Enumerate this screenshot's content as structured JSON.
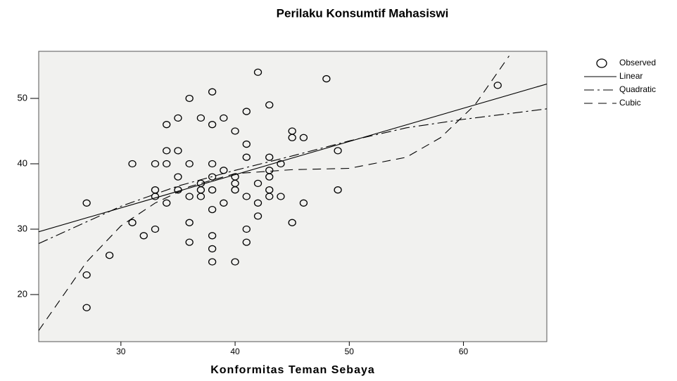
{
  "chart_data": {
    "type": "scatter",
    "title": "Perilaku Konsumtif Mahasiswi",
    "x_label": "Konformitas Teman Sebaya",
    "xlim": [
      22.8,
      67.3
    ],
    "ylim": [
      12.8,
      57.2
    ],
    "xticks": [
      30,
      40,
      50,
      60
    ],
    "yticks": [
      20,
      30,
      40,
      50
    ],
    "series": [
      {
        "name": "Observed",
        "mode": "markers",
        "color": "#000000",
        "x": [
          27,
          27,
          27,
          29,
          31,
          31,
          32,
          33,
          33,
          33,
          33,
          34,
          34,
          34,
          34,
          35,
          35,
          35,
          35,
          36,
          36,
          36,
          36,
          36,
          37,
          37,
          37,
          37,
          38,
          38,
          38,
          38,
          38,
          38,
          38,
          38,
          38,
          39,
          39,
          39,
          40,
          40,
          40,
          40,
          40,
          41,
          41,
          41,
          41,
          41,
          41,
          42,
          42,
          42,
          42,
          43,
          43,
          43,
          43,
          43,
          43,
          44,
          44,
          45,
          45,
          45,
          46,
          46,
          48,
          49,
          49,
          63
        ],
        "values": [
          34,
          23,
          18,
          26,
          40,
          31,
          29,
          40,
          36,
          35,
          30,
          46,
          42,
          40,
          34,
          47,
          42,
          38,
          36,
          50,
          40,
          35,
          31,
          28,
          47,
          37,
          36,
          35,
          51,
          46,
          40,
          38,
          36,
          33,
          29,
          27,
          25,
          47,
          39,
          34,
          45,
          38,
          37,
          36,
          25,
          48,
          43,
          41,
          35,
          30,
          28,
          54,
          37,
          34,
          32,
          49,
          41,
          39,
          38,
          36,
          35,
          35,
          40,
          45,
          44,
          31,
          44,
          34,
          53,
          42,
          36,
          52
        ]
      },
      {
        "name": "Linear",
        "mode": "line",
        "line_style": "solid",
        "color": "#000000",
        "x": [
          22.8,
          67.3
        ],
        "values": [
          29.6,
          52.2
        ]
      },
      {
        "name": "Quadratic",
        "mode": "line",
        "line_style": "dashdot",
        "color": "#000000",
        "x": [
          22.8,
          30,
          35,
          40,
          45,
          50,
          55,
          60,
          67.3
        ],
        "values": [
          27.8,
          33.5,
          36.6,
          39,
          41.2,
          43.5,
          45.5,
          46.8,
          48.4
        ]
      },
      {
        "name": "Cubic",
        "mode": "line",
        "line_style": "dashed",
        "color": "#000000",
        "x": [
          22.8,
          25,
          27,
          30,
          33,
          36,
          40,
          45,
          50,
          55,
          58,
          61,
          64
        ],
        "values": [
          14.5,
          20,
          25,
          30.5,
          34,
          36.5,
          38.5,
          39.1,
          39.3,
          41,
          44,
          49,
          56.5
        ]
      }
    ]
  }
}
